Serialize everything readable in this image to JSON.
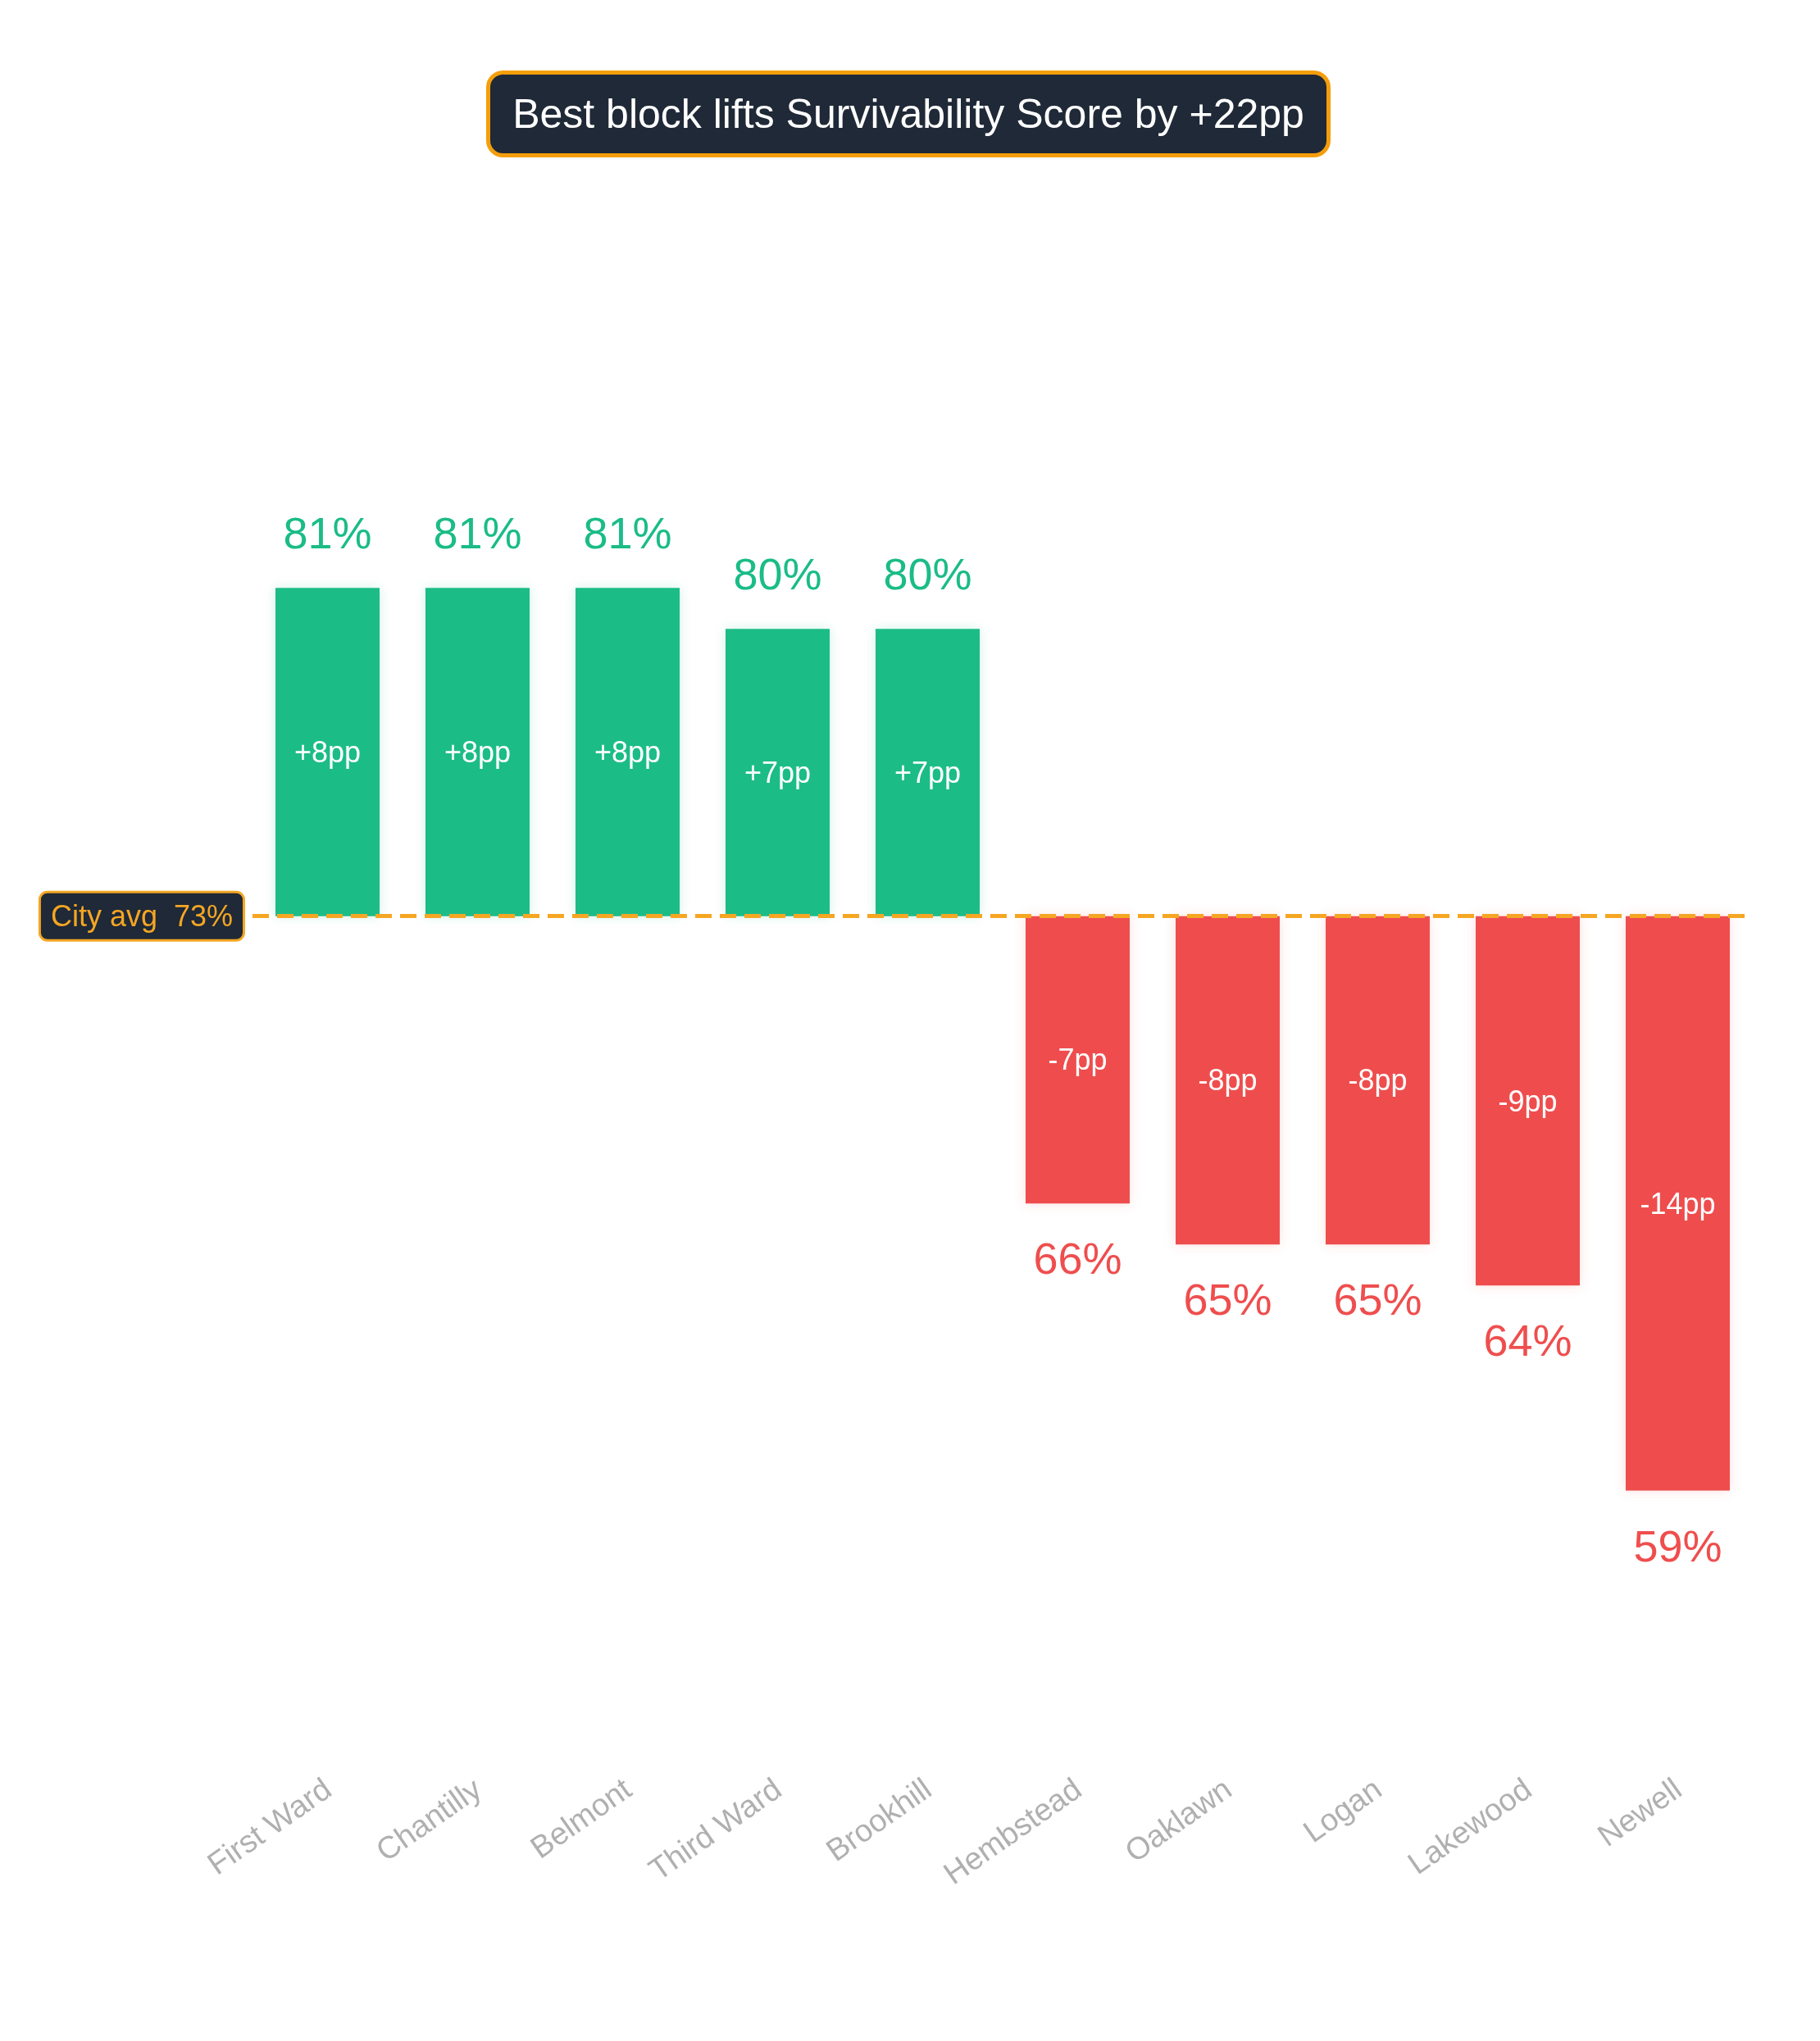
{
  "chart_data": {
    "type": "bar",
    "title": "Best block lifts Survivability Score by +22pp",
    "categories": [
      "First Ward",
      "Chantilly",
      "Belmont",
      "Third Ward",
      "Brookhill",
      "Hembstead",
      "Oaklawn",
      "Logan",
      "Lakewood",
      "Newell"
    ],
    "values": [
      8,
      8,
      8,
      7,
      7,
      -7,
      -8,
      -8,
      -9,
      -14
    ],
    "colors": [
      "#1abc87",
      "#1abc87",
      "#1abc87",
      "#1abc87",
      "#1abc87",
      "#ef4e4e",
      "#ef4e4e",
      "#ef4e4e",
      "#ef4e4e",
      "#ef4e4e"
    ],
    "value_labels": [
      "+8pp",
      "+8pp",
      "+8pp",
      "+7pp",
      "+7pp",
      "-7pp",
      "-8pp",
      "-8pp",
      "-9pp",
      "-14pp"
    ],
    "ref_lines": [
      {
        "axis": "y",
        "value": 0,
        "label": "City avg  73%",
        "color": "#f5a623",
        "line_style": "dashed"
      }
    ],
    "annotations": [
      "81%",
      "81%",
      "81%",
      "80%",
      "80%",
      "66%",
      "65%",
      "65%",
      "64%",
      "59%"
    ],
    "grid": false
  }
}
